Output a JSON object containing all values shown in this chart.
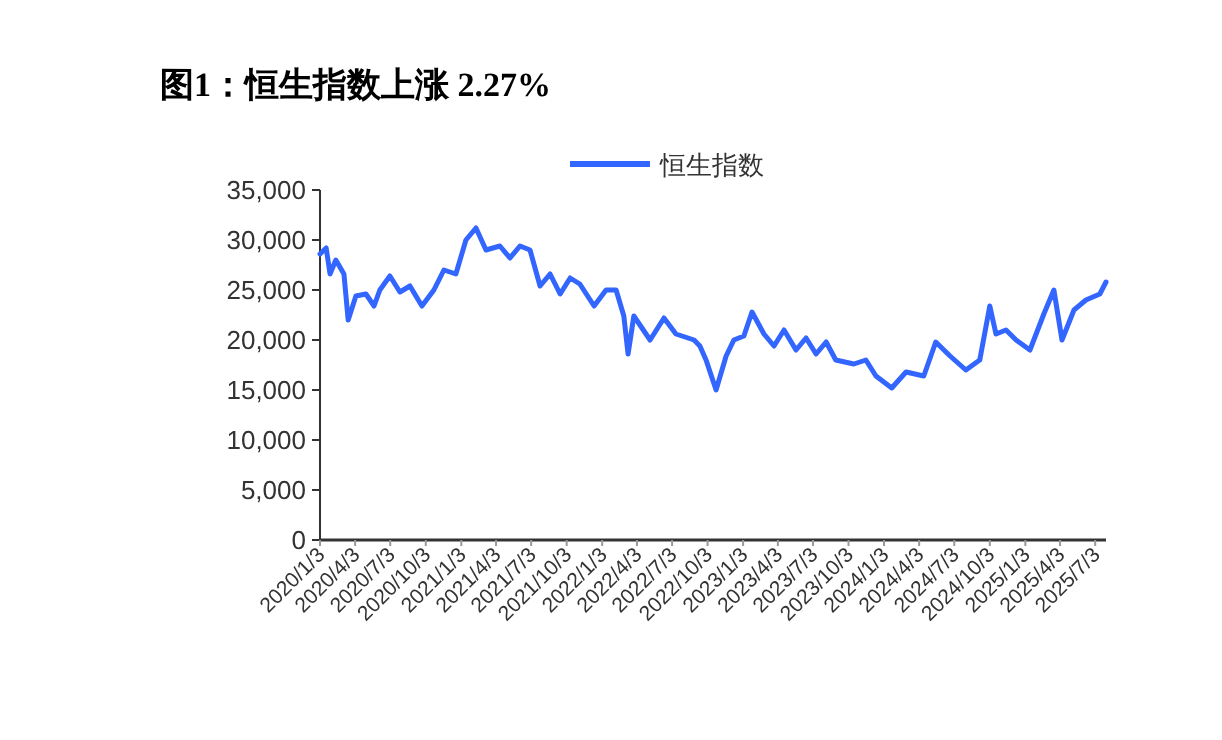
{
  "chart_data": {
    "type": "line",
    "title": "图1：恒生指数上涨 2.27%",
    "legend": "top",
    "grid": false,
    "marker": "none",
    "line_style": "solid",
    "xlim": [
      "2020-01-03",
      "2025-07-31"
    ],
    "xticks": [
      {
        "value": "2020-01-03",
        "label": "2020/1/3"
      },
      {
        "value": "2020-04-03",
        "label": "2020/4/3"
      },
      {
        "value": "2020-07-03",
        "label": "2020/7/3"
      },
      {
        "value": "2020-10-03",
        "label": "2020/10/3"
      },
      {
        "value": "2021-01-03",
        "label": "2021/1/3"
      },
      {
        "value": "2021-04-03",
        "label": "2021/4/3"
      },
      {
        "value": "2021-07-03",
        "label": "2021/7/3"
      },
      {
        "value": "2021-10-03",
        "label": "2021/10/3"
      },
      {
        "value": "2022-01-03",
        "label": "2022/1/3"
      },
      {
        "value": "2022-04-03",
        "label": "2022/4/3"
      },
      {
        "value": "2022-07-03",
        "label": "2022/7/3"
      },
      {
        "value": "2022-10-03",
        "label": "2022/10/3"
      },
      {
        "value": "2023-01-03",
        "label": "2023/1/3"
      },
      {
        "value": "2023-04-03",
        "label": "2023/4/3"
      },
      {
        "value": "2023-07-03",
        "label": "2023/7/3"
      },
      {
        "value": "2023-10-03",
        "label": "2023/10/3"
      },
      {
        "value": "2024-01-03",
        "label": "2024/1/3"
      },
      {
        "value": "2024-04-03",
        "label": "2024/4/3"
      },
      {
        "value": "2024-07-03",
        "label": "2024/7/3"
      },
      {
        "value": "2024-10-03",
        "label": "2024/10/3"
      },
      {
        "value": "2025-01-03",
        "label": "2025/1/3"
      },
      {
        "value": "2025-04-03",
        "label": "2025/4/3"
      },
      {
        "value": "2025-07-03",
        "label": "2025/7/3"
      }
    ],
    "ylim": [
      0,
      35000
    ],
    "yticks": [
      {
        "value": 0,
        "label": "0"
      },
      {
        "value": 5000,
        "label": "5,000"
      },
      {
        "value": 10000,
        "label": "10,000"
      },
      {
        "value": 15000,
        "label": "15,000"
      },
      {
        "value": 20000,
        "label": "20,000"
      },
      {
        "value": 25000,
        "label": "25,000"
      },
      {
        "value": 30000,
        "label": "30,000"
      },
      {
        "value": 35000,
        "label": "35,000"
      }
    ],
    "series": [
      {
        "name": "恒生指数",
        "color": "#3366ff",
        "x": [
          "2020-01-03",
          "2020-01-19",
          "2020-01-29",
          "2020-02-13",
          "2020-03-05",
          "2020-03-16",
          "2020-04-05",
          "2020-05-01",
          "2020-05-22",
          "2020-06-06",
          "2020-07-02",
          "2020-07-28",
          "2020-08-23",
          "2020-09-23",
          "2020-10-24",
          "2020-11-19",
          "2020-12-20",
          "2021-01-15",
          "2021-02-10",
          "2021-03-08",
          "2021-04-13",
          "2021-05-09",
          "2021-06-04",
          "2021-06-30",
          "2021-07-26",
          "2021-08-21",
          "2021-09-16",
          "2021-10-12",
          "2021-11-06",
          "2021-12-13",
          "2022-01-13",
          "2022-02-08",
          "2022-02-28",
          "2022-03-11",
          "2022-03-26",
          "2022-05-07",
          "2022-06-12",
          "2022-07-13",
          "2022-08-29",
          "2022-09-13",
          "2022-09-29",
          "2022-10-25",
          "2022-11-20",
          "2022-12-10",
          "2023-01-05",
          "2023-01-26",
          "2023-02-26",
          "2023-03-24",
          "2023-04-19",
          "2023-05-20",
          "2023-06-15",
          "2023-07-11",
          "2023-08-06",
          "2023-08-31",
          "2023-10-17",
          "2023-11-17",
          "2023-12-13",
          "2024-01-23",
          "2024-02-29",
          "2024-04-15",
          "2024-05-16",
          "2024-06-22",
          "2024-08-02",
          "2024-09-07",
          "2024-10-03",
          "2024-10-19",
          "2024-11-14",
          "2024-12-10",
          "2025-01-15",
          "2025-02-20",
          "2025-03-18",
          "2025-04-08",
          "2025-05-09",
          "2025-06-09",
          "2025-07-15",
          "2025-07-31"
        ],
        "values": [
          28600,
          29200,
          26600,
          28000,
          26600,
          22000,
          24400,
          24600,
          23400,
          25000,
          26400,
          24800,
          25400,
          23400,
          25000,
          27000,
          26600,
          30000,
          31200,
          29000,
          29400,
          28200,
          29400,
          29000,
          25400,
          26600,
          24600,
          26200,
          25600,
          23400,
          25000,
          25000,
          22400,
          18600,
          22400,
          20000,
          22200,
          20600,
          20000,
          19400,
          18000,
          15000,
          18400,
          20000,
          20400,
          22800,
          20600,
          19400,
          21000,
          19000,
          20200,
          18600,
          19800,
          18000,
          17600,
          18000,
          16400,
          15200,
          16800,
          16400,
          19800,
          18400,
          17000,
          18000,
          23400,
          20600,
          21000,
          20000,
          19000,
          22600,
          25000,
          20000,
          23000,
          24000,
          24600,
          25800
        ]
      }
    ]
  }
}
